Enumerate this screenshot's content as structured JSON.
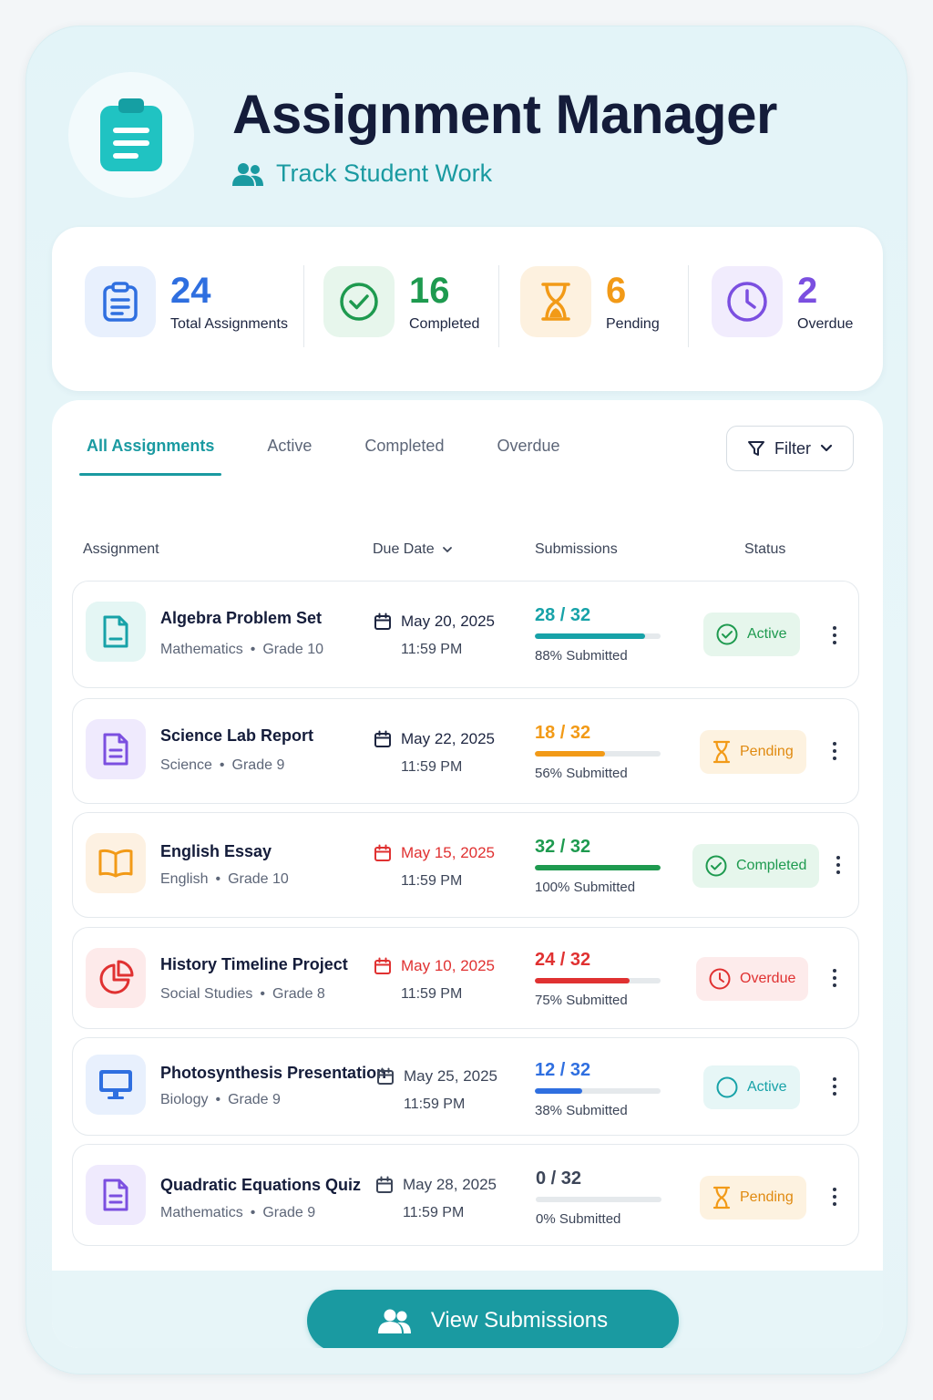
{
  "header": {
    "title": "Assignment Manager",
    "subtitle": "Track Student Work",
    "logo_icon": "clipboard-icon"
  },
  "stats": [
    {
      "value": "24",
      "label": "Total Assignments",
      "icon": "clipboard-icon",
      "color": "#2f6fe0"
    },
    {
      "value": "16",
      "label": "Completed",
      "icon": "check-circle-icon",
      "color": "#1e9a4f"
    },
    {
      "value": "6",
      "label": "Pending",
      "icon": "hourglass-icon",
      "color": "#f29a17"
    },
    {
      "value": "2",
      "label": "Overdue",
      "icon": "clock-icon",
      "color": "#7b4fe0"
    }
  ],
  "tabs": [
    {
      "label": "All Assignments",
      "active": true
    },
    {
      "label": "Active"
    },
    {
      "label": "Completed"
    },
    {
      "label": "Overdue"
    }
  ],
  "filter": {
    "label": "Filter"
  },
  "columns": {
    "assignment": "Assignment",
    "due_date": "Due Date",
    "submissions": "Submissions",
    "status": "Status"
  },
  "assignments": [
    {
      "title": "Algebra Problem Set",
      "subject": "Mathematics",
      "grade": "Grade 10",
      "due_date": "May 20, 2025",
      "due_time": "11:59 PM",
      "overdue_date": false,
      "count": "28 / 32",
      "fraction": 0.88,
      "pct_label": "88% Submitted",
      "status": "Active",
      "icon": "document-icon",
      "accent": "#17a2a8"
    },
    {
      "title": "Science Lab Report",
      "subject": "Science",
      "grade": "Grade 9",
      "due_date": "May 22, 2025",
      "due_time": "11:59 PM",
      "overdue_date": false,
      "count": "18 / 32",
      "fraction": 0.56,
      "pct_label": "56% Submitted",
      "status": "Pending",
      "icon": "document-lines-icon",
      "accent": "#f29a17"
    },
    {
      "title": "English Essay",
      "subject": "English",
      "grade": "Grade 10",
      "due_date": "May 15, 2025",
      "due_time": "11:59 PM",
      "overdue_date": true,
      "count": "32 / 32",
      "fraction": 1.0,
      "pct_label": "100% Submitted",
      "status": "Completed",
      "icon": "book-icon",
      "accent": "#1e9a4f"
    },
    {
      "title": "History Timeline Project",
      "subject": "Social Studies",
      "grade": "Grade 8",
      "due_date": "May 10, 2025",
      "due_time": "11:59 PM",
      "overdue_date": true,
      "count": "24 / 32",
      "fraction": 0.75,
      "pct_label": "75% Submitted",
      "status": "Overdue",
      "icon": "pie-chart-icon",
      "accent": "#e03131"
    },
    {
      "title": "Photosynthesis Presentation",
      "subject": "Biology",
      "grade": "Grade 9",
      "due_date": "May 25, 2025",
      "due_time": "11:59 PM",
      "overdue_date": false,
      "count": "12 / 32",
      "fraction": 0.38,
      "pct_label": "38% Submitted",
      "status": "Active",
      "icon": "monitor-icon",
      "accent": "#2f6fe0"
    },
    {
      "title": "Quadratic Equations Quiz",
      "subject": "Mathematics",
      "grade": "Grade 9",
      "due_date": "May 28, 2025",
      "due_time": "11:59 PM",
      "overdue_date": false,
      "count": "0 / 32",
      "fraction": 0.0,
      "pct_label": "0% Submitted",
      "status": "Pending",
      "icon": "document-lines-icon",
      "accent": "#3c4558"
    }
  ],
  "dot_separator": "•",
  "view_button": {
    "label": "View Submissions"
  }
}
